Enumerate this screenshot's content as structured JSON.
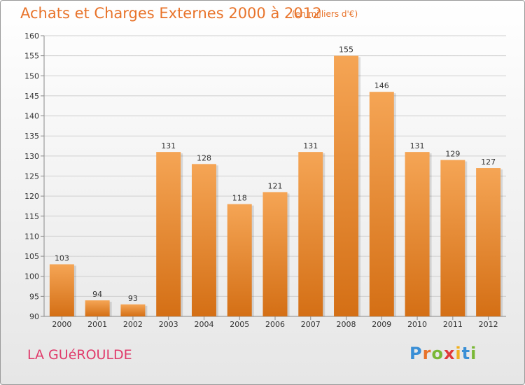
{
  "header": {
    "title": "Achats et Charges Externes 2000 à 2012",
    "unit": "(en milliers d'€)"
  },
  "footer": {
    "town": "LA GUéROULDE",
    "brand_letters": [
      {
        "ch": "P",
        "color": "#3a8fd6"
      },
      {
        "ch": "r",
        "color": "#e8732a"
      },
      {
        "ch": "o",
        "color": "#7ab836"
      },
      {
        "ch": "x",
        "color": "#e03a3a"
      },
      {
        "ch": "i",
        "color": "#f2b01e"
      },
      {
        "ch": "t",
        "color": "#3a8fd6"
      },
      {
        "ch": "i",
        "color": "#7ab836"
      }
    ]
  },
  "chart_data": {
    "type": "bar",
    "title": "Achats et Charges Externes 2000 à 2012",
    "subtitle": "(en milliers d'€)",
    "categories": [
      "2000",
      "2001",
      "2002",
      "2003",
      "2004",
      "2005",
      "2006",
      "2007",
      "2008",
      "2009",
      "2010",
      "2011",
      "2012"
    ],
    "values": [
      103,
      94,
      93,
      131,
      128,
      118,
      121,
      131,
      155,
      146,
      131,
      129,
      127
    ],
    "ylim": [
      90,
      160
    ],
    "yticks": [
      90,
      95,
      100,
      105,
      110,
      115,
      120,
      125,
      130,
      135,
      140,
      145,
      150,
      155,
      160
    ],
    "grid": true,
    "bar_color_top": "#f5a555",
    "bar_color_bottom": "#d46f15"
  }
}
